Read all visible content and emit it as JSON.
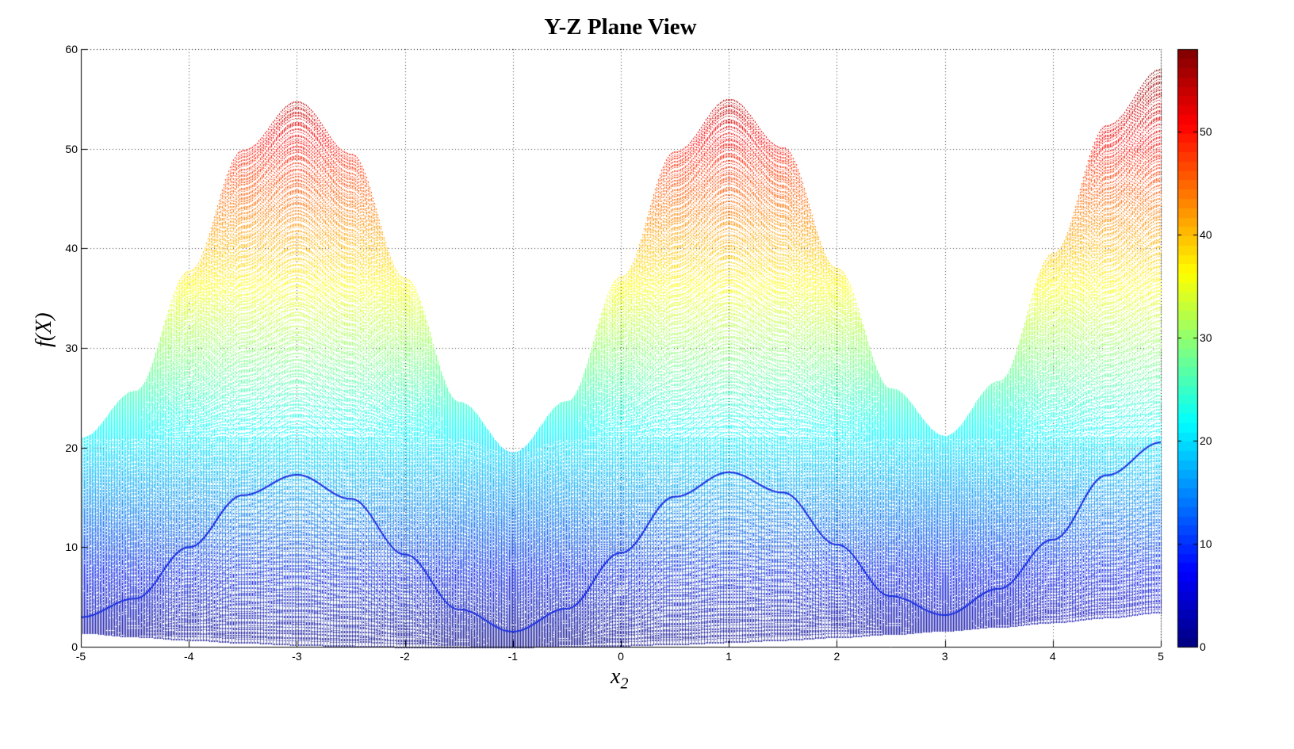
{
  "chart_data": {
    "type": "surface-mesh",
    "title": "Y-Z Plane View",
    "xlabel": "x",
    "xlabel_subscript": "2",
    "ylabel": "f(X)",
    "xlim": [
      -5,
      5
    ],
    "ylim": [
      0,
      60
    ],
    "xticks": [
      "-5",
      "-4",
      "-3",
      "-2",
      "-1",
      "0",
      "1",
      "2",
      "3",
      "4",
      "5"
    ],
    "yticks": [
      "0",
      "10",
      "20",
      "30",
      "40",
      "50",
      "60"
    ],
    "grid": true,
    "colormap": "jet",
    "colorbar": {
      "position": "right",
      "range": [
        0,
        58
      ],
      "ticks": [
        "0",
        "10",
        "20",
        "30",
        "40",
        "50"
      ]
    },
    "x2": [
      -5,
      -4.5,
      -4,
      -3.5,
      -3,
      -2.5,
      -2,
      -1.5,
      -1,
      -0.5,
      0,
      0.5,
      1,
      1.5,
      2,
      2.5,
      3,
      3.5,
      4,
      4.5,
      5
    ],
    "series": [
      {
        "role": "upper-envelope",
        "values": [
          20.97,
          25.69,
          37.75,
          49.87,
          54.77,
          49.51,
          37.03,
          24.61,
          19.52,
          24.69,
          37.19,
          49.72,
          55.02,
          50.14,
          38.02,
          25.94,
          21.18,
          26.68,
          39.51,
          52.38,
          58.01
        ]
      },
      {
        "role": "inner-ridge",
        "values": [
          2.97,
          4.84,
          10.0,
          15.22,
          17.27,
          14.86,
          9.28,
          3.77,
          1.52,
          3.84,
          9.44,
          15.07,
          17.52,
          15.49,
          10.27,
          5.09,
          3.18,
          5.83,
          10.76,
          17.23,
          20.51
        ]
      },
      {
        "role": "mid-band",
        "values": [
          21,
          21,
          21,
          21,
          21,
          21,
          21,
          21,
          19.5,
          21,
          21,
          21,
          21,
          21,
          21,
          21,
          21,
          21,
          21,
          21,
          21
        ]
      },
      {
        "role": "lower-envelope",
        "values": [
          1.47,
          1.08,
          0.75,
          0.48,
          0.27,
          0.12,
          0.03,
          0,
          0.02,
          0.08,
          0.19,
          0.33,
          0.52,
          0.75,
          1.02,
          1.33,
          1.68,
          2.07,
          2.51,
          2.99,
          3.51
        ]
      }
    ]
  }
}
